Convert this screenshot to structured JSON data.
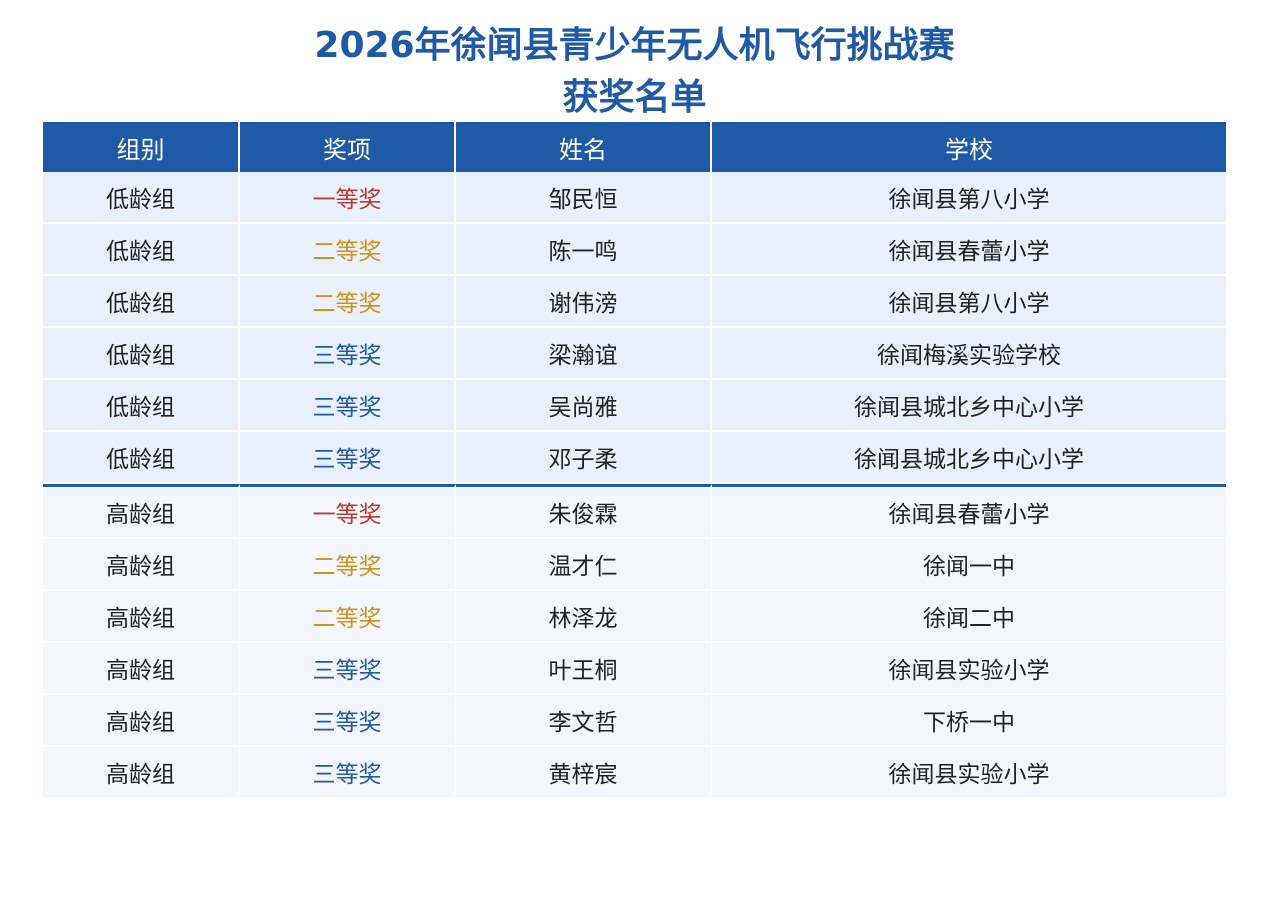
{
  "title": {
    "line1": "2026年徐闻县青少年无人机飞行挑战赛",
    "line2": "获奖名单"
  },
  "table": {
    "headers": [
      "组别",
      "奖项",
      "姓名",
      "学校"
    ],
    "rows": [
      {
        "group": "低龄组",
        "award": "一等奖",
        "name": "邹民恒",
        "school": "徐闻县第八小学"
      },
      {
        "group": "低龄组",
        "award": "二等奖",
        "name": "陈一鸣",
        "school": "徐闻县春蕾小学"
      },
      {
        "group": "低龄组",
        "award": "二等奖",
        "name": "谢伟滂",
        "school": "徐闻县第八小学"
      },
      {
        "group": "低龄组",
        "award": "三等奖",
        "name": "梁瀚谊",
        "school": "徐闻梅溪实验学校"
      },
      {
        "group": "低龄组",
        "award": "三等奖",
        "name": "吴尚雅",
        "school": "徐闻县城北乡中心小学"
      },
      {
        "group": "低龄组",
        "award": "三等奖",
        "name": "邓子柔",
        "school": "徐闻县城北乡中心小学"
      },
      {
        "group": "高龄组",
        "award": "一等奖",
        "name": "朱俊霖",
        "school": "徐闻县春蕾小学"
      },
      {
        "group": "高龄组",
        "award": "二等奖",
        "name": "温才仁",
        "school": "徐闻一中"
      },
      {
        "group": "高龄组",
        "award": "二等奖",
        "name": "林泽龙",
        "school": "徐闻二中"
      },
      {
        "group": "高龄组",
        "award": "三等奖",
        "name": "叶王桐",
        "school": "徐闻县实验小学"
      },
      {
        "group": "高龄组",
        "award": "三等奖",
        "name": "李文哲",
        "school": "下桥一中"
      },
      {
        "group": "高龄组",
        "award": "三等奖",
        "name": "黄梓宸",
        "school": "徐闻县实验小学"
      }
    ]
  },
  "colors": {
    "header_bg": "#1f5aa6",
    "first_prize": "#c0392b",
    "second_prize": "#d39217",
    "third_prize": "#1f5aa6",
    "low_group_row_bg": "#e8f0fb",
    "high_group_row_bg": "#f3f7fd"
  }
}
